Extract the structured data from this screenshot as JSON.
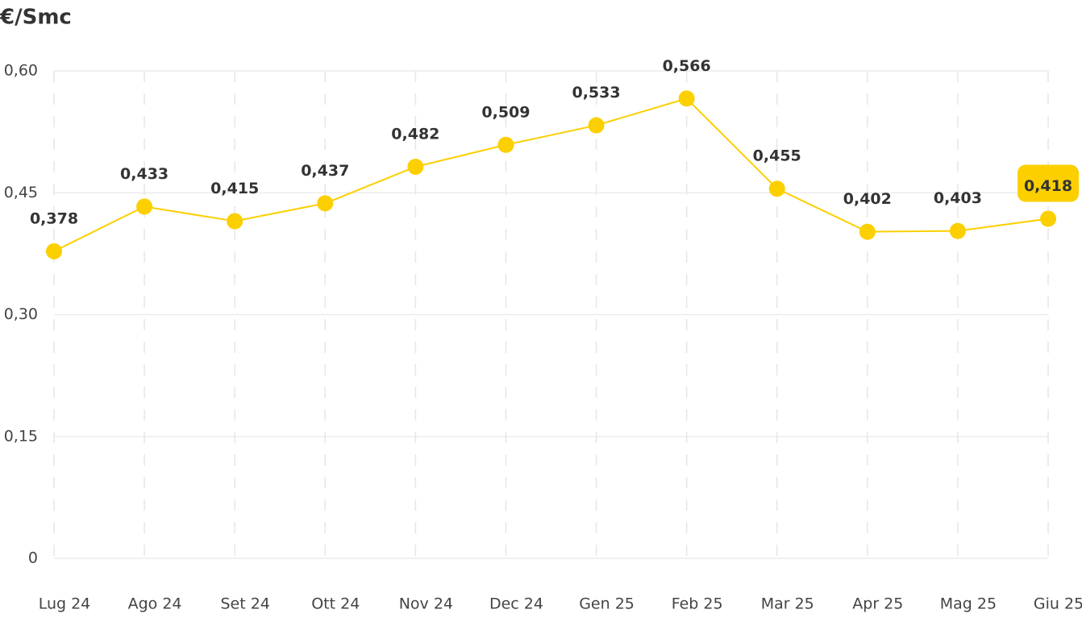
{
  "chart_data": {
    "type": "line",
    "title": "€/Smc",
    "categories": [
      "Lug 24",
      "Ago 24",
      "Set 24",
      "Ott 24",
      "Nov 24",
      "Dec 24",
      "Gen 25",
      "Feb 25",
      "Mar 25",
      "Apr 25",
      "Mag 25",
      "Giu 25"
    ],
    "series": [
      {
        "name": "€/Smc",
        "color": "#fccf00",
        "values": [
          0.378,
          0.433,
          0.415,
          0.437,
          0.482,
          0.509,
          0.533,
          0.566,
          0.455,
          0.402,
          0.403,
          0.418
        ],
        "value_labels": [
          "0,378",
          "0,433",
          "0,415",
          "0,437",
          "0,482",
          "0,509",
          "0,533",
          "0,566",
          "0,455",
          "0,402",
          "0,403",
          "0,418"
        ]
      }
    ],
    "ylim": [
      0,
      0.6
    ],
    "yticks": [
      0,
      {
        "value": 0.15,
        "label": "0,15"
      },
      {
        "value": 0.3,
        "label": "0,30"
      },
      {
        "value": 0.45,
        "label": "0,45"
      },
      {
        "value": 0.6,
        "label": "0,60"
      }
    ],
    "grid": true
  }
}
